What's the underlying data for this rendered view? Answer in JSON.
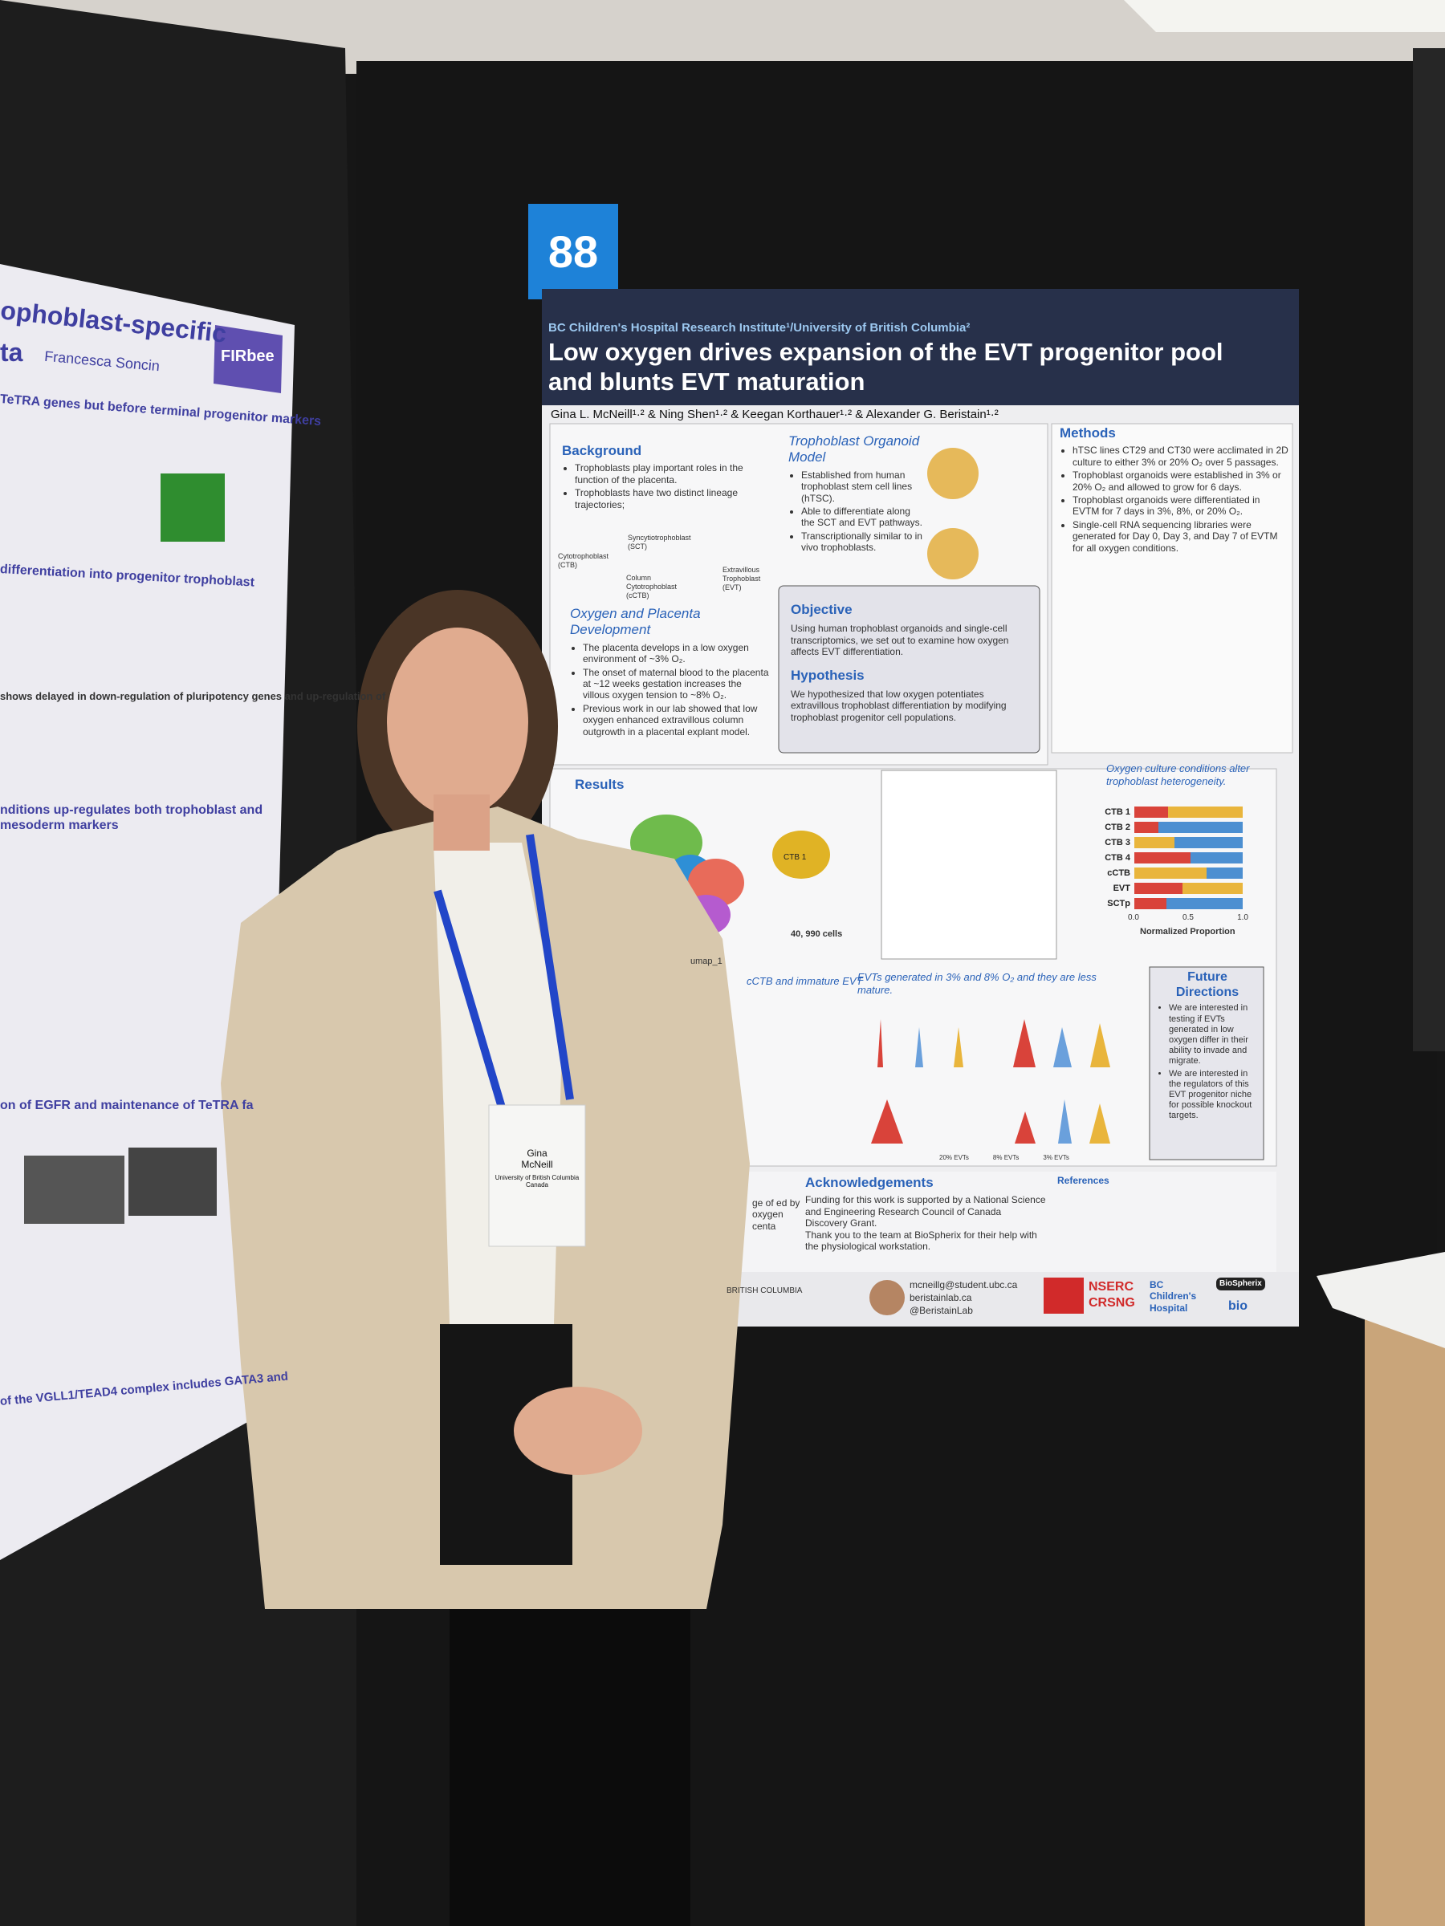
{
  "poster_number": "88",
  "poster": {
    "institution": "BC Children's Hospital Research Institute¹/University of British Columbia²",
    "title": "Low oxygen drives expansion of the EVT progenitor pool and blunts EVT maturation",
    "authors": "Gina L. McNeill¹·² & Ning Shen¹·² & Keegan Korthauer¹·² & Alexander G. Beristain¹·²",
    "background": {
      "heading": "Background",
      "items": [
        "Trophoblasts play important roles in the function of the placenta.",
        "Trophoblasts have two distinct lineage trajectories;"
      ],
      "diagram": [
        "Syncytiotrophoblast (SCT)",
        "Cytotrophoblast (CTB)",
        "Column Cytotrophoblast (cCTB)",
        "Extravillous Trophoblast (EVT)"
      ]
    },
    "organoid": {
      "heading": "Trophoblast Organoid Model",
      "items": [
        "Established from human trophoblast stem cell lines (hTSC).",
        "Able to differentiate along the SCT and EVT pathways.",
        "Transcriptionally similar to in vivo trophoblasts."
      ]
    },
    "oxygen": {
      "heading": "Oxygen and Placenta Development",
      "items": [
        "The placenta develops in a low oxygen environment of ~3% O₂.",
        "The onset of maternal blood to the placenta at ~12 weeks gestation increases the villous oxygen tension to ~8% O₂.",
        "Previous work in our lab showed that low oxygen enhanced extravillous column outgrowth in a placental explant model."
      ]
    },
    "objective": {
      "heading": "Objective",
      "text": "Using human trophoblast organoids and single-cell transcriptomics, we set out to examine how oxygen affects EVT differentiation."
    },
    "hypothesis": {
      "heading": "Hypothesis",
      "text": "We hypothesized that low oxygen potentiates extravillous trophoblast differentiation by modifying trophoblast progenitor cell populations."
    },
    "methods": {
      "heading": "Methods",
      "items": [
        "hTSC lines CT29 and CT30 were acclimated in 2D culture to either 3% or 20% O₂ over 5 passages.",
        "Trophoblast organoids were established in 3% or 20% O₂ and allowed to grow for 6 days.",
        "Trophoblast organoids were differentiated in EVTM for 7 days in 3%, 8%, or 20% O₂.",
        "Single-cell RNA sequencing libraries were generated for Day 0, Day 3, and Day 7 of EVTM for all oxygen conditions."
      ]
    },
    "results": {
      "heading": "Results",
      "umap_caption": "40, 990 cells",
      "umap_axis": "umap_1",
      "cluster_label": "CTB 1",
      "heterogeneity": "Oxygen culture conditions alter trophoblast heterogeneity.",
      "bar_labels": [
        "CTB 1",
        "CTB 2",
        "CTB 3",
        "CTB 4",
        "cCTB",
        "EVT",
        "SCTp"
      ],
      "bar_ticks": [
        "0.0",
        "0.5",
        "1.0"
      ],
      "bar_axis": "Normalized Proportion",
      "cctb_caption": "cCTB and immature EVT",
      "evt_caption": "EVTs generated in 3% and 8% O₂ and they are less mature.",
      "violin_legend": [
        "20% EVTs",
        "8% EVTs",
        "3% EVTs"
      ]
    },
    "future": {
      "heading": "Future Directions",
      "items": [
        "We are interested in testing if EVTs generated in low oxygen differ in their ability to invade and migrate.",
        "We are interested in the regulators of this EVT progenitor niche for possible knockout targets."
      ]
    },
    "conclusion_fragment": "ge of ed by oxygen centa",
    "acknowledgements": {
      "heading": "Acknowledgements",
      "items": [
        "Funding for this work is supported by a National Science and Engineering Research Council of Canada Discovery Grant.",
        "Thank you to the team at BioSpherix for their help with the physiological workstation."
      ]
    },
    "references": {
      "heading": "References"
    },
    "footer_left": "BRITISH COLUMBIA",
    "contact": [
      "mcneillg@student.ubc.ca",
      "beristainlab.ca",
      "@BeristainLab"
    ],
    "logos": [
      "NSERC",
      "CRSNG",
      "BC Children's Hospital",
      "BioSpherix",
      "bio"
    ]
  },
  "badge": {
    "first_name": "Gina",
    "last_name": "McNeill",
    "affiliation": "University of British Columbia Canada"
  },
  "left_poster": {
    "title": "ophoblast-specific",
    "title2": "ta",
    "author": "Francesca Soncin",
    "lines": [
      "TeTRA genes but before terminal progenitor markers",
      "differentiation into progenitor trophoblast",
      "shows delayed in down-regulation of pluripotency genes and up-regulation of",
      "nditions up-regulates both trophoblast and mesoderm markers",
      "on of EGFR and maintenance of TeTRA fa",
      "of the VGLL1/TEAD4 complex includes GATA3 and"
    ],
    "logo": "FIRbee"
  }
}
